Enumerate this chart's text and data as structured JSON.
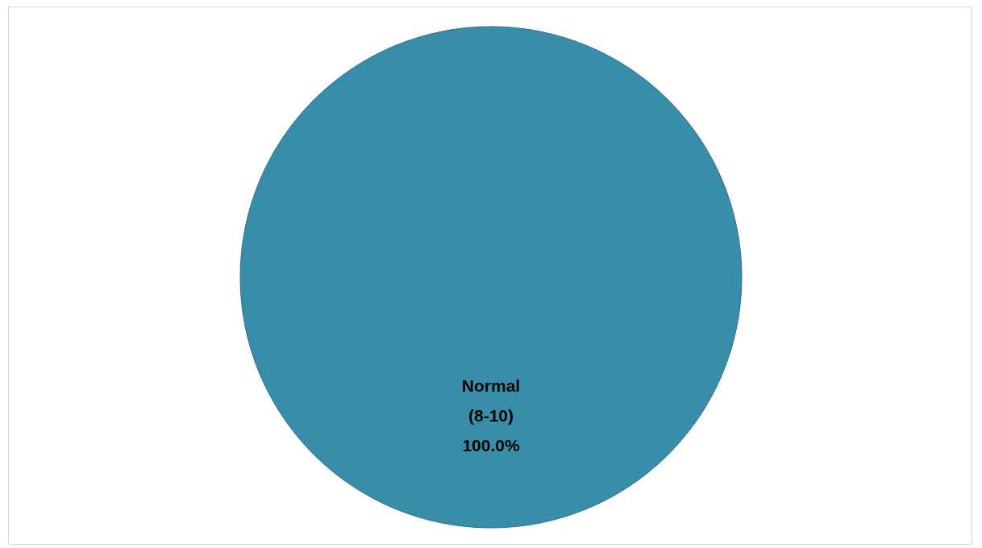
{
  "chart_data": {
    "type": "pie",
    "categories": [
      "Normal (8-10)"
    ],
    "values": [
      100
    ],
    "colors": [
      "#388ea8"
    ],
    "value_labels": [
      "100.0%"
    ],
    "legend": false
  }
}
